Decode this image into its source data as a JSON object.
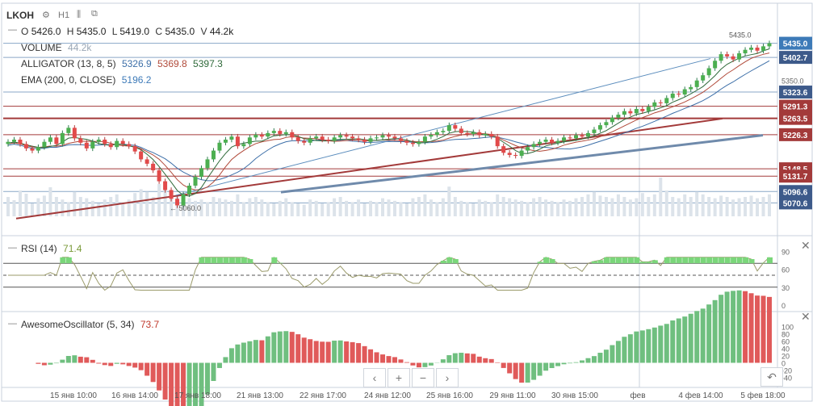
{
  "header": {
    "symbol": "LKOH",
    "timeframe": "H1",
    "ohlc": {
      "o_label": "O",
      "o": "5426.0",
      "h_label": "H",
      "h": "5435.0",
      "l_label": "L",
      "l": "5419.0",
      "c_label": "C",
      "c": "5435.0",
      "v_label": "V",
      "v": "44.2k"
    }
  },
  "legend": {
    "volume_label": "VOLUME",
    "volume_value": "44.2k",
    "alligator_label": "ALLIGATOR (13, 8, 5)",
    "alligator_v1": "5326.9",
    "alligator_v2": "5369.8",
    "alligator_v3": "5397.3",
    "ema_label": "EMA (200, 0, CLOSE)",
    "ema_value": "5196.2"
  },
  "rsi": {
    "label": "RSI (14)",
    "value": "71.4"
  },
  "ao": {
    "label": "AwesomeOscillator (5, 34)",
    "value": "73.7"
  },
  "annotations": {
    "last_price": "5435.0",
    "low_marker": "5060.0",
    "price_5350": "5350.0"
  },
  "controls": {
    "prev": "‹",
    "plus": "+",
    "minus": "−",
    "next": "›",
    "reset": "↶"
  },
  "colors": {
    "up": "#26a69a",
    "down": "#ef5350",
    "accent_blue": "#3d7ab8",
    "level_line": "#a33a3a",
    "ema": "#5a7fa8"
  },
  "chart_data": {
    "type": "candlestick",
    "price_axis": {
      "ticks": [
        "5350.0",
        "5096.6",
        "5070.6"
      ],
      "ylim": [
        5040,
        5460
      ]
    },
    "price_labels": [
      {
        "text": "5435.0",
        "value": 5435.0,
        "color": "#3d7ab8"
      },
      {
        "text": "5402.7",
        "value": 5402.7,
        "color": "#3d5a8a"
      },
      {
        "text": "5323.6",
        "value": 5323.6,
        "color": "#3d5a8a"
      },
      {
        "text": "5291.3",
        "value": 5291.3,
        "color": "#a33a3a"
      },
      {
        "text": "5263.5",
        "value": 5263.5,
        "color": "#a33a3a"
      },
      {
        "text": "5226.3",
        "value": 5226.3,
        "color": "#a33a3a"
      },
      {
        "text": "5148.5",
        "value": 5148.5,
        "color": "#a33a3a"
      },
      {
        "text": "5131.7",
        "value": 5131.7,
        "color": "#a33a3a"
      },
      {
        "text": "5096.6",
        "value": 5096.6,
        "color": "#3d5a8a"
      },
      {
        "text": "5070.6",
        "value": 5070.6,
        "color": "#3d5a8a"
      }
    ],
    "x_labels": [
      "15 янв 10:00",
      "16 янв 14:00",
      "17 янв 18:00",
      "21 янв 13:00",
      "22 янв 17:00",
      "24 янв 12:00",
      "25 янв 16:00",
      "29 янв 11:00",
      "30 янв 15:00",
      "фев",
      "4 фев 14:00",
      "5 фев 18:00"
    ],
    "close": [
      5210,
      5215,
      5205,
      5195,
      5190,
      5198,
      5210,
      5220,
      5205,
      5230,
      5242,
      5218,
      5208,
      5195,
      5210,
      5215,
      5205,
      5198,
      5212,
      5205,
      5200,
      5188,
      5170,
      5160,
      5145,
      5120,
      5100,
      5080,
      5065,
      5090,
      5110,
      5130,
      5150,
      5170,
      5190,
      5208,
      5215,
      5222,
      5200,
      5205,
      5220,
      5226,
      5222,
      5230,
      5235,
      5228,
      5232,
      5220,
      5212,
      5208,
      5218,
      5222,
      5215,
      5212,
      5220,
      5225,
      5222,
      5218,
      5215,
      5210,
      5218,
      5220,
      5225,
      5222,
      5218,
      5212,
      5208,
      5205,
      5210,
      5222,
      5226,
      5232,
      5235,
      5248,
      5240,
      5230,
      5228,
      5232,
      5225,
      5228,
      5222,
      5200,
      5185,
      5180,
      5178,
      5190,
      5198,
      5205,
      5210,
      5215,
      5208,
      5212,
      5220,
      5218,
      5225,
      5222,
      5230,
      5238,
      5248,
      5255,
      5265,
      5272,
      5280,
      5275,
      5285,
      5280,
      5290,
      5300,
      5298,
      5310,
      5320,
      5318,
      5330,
      5335,
      5350,
      5362,
      5378,
      5395,
      5410,
      5405,
      5398,
      5412,
      5420,
      5425,
      5418,
      5428,
      5435
    ],
    "volume": [
      30,
      25,
      40,
      35,
      20,
      28,
      32,
      45,
      30,
      26,
      22,
      38,
      30,
      28,
      24,
      20,
      26,
      30,
      34,
      22,
      26,
      36,
      42,
      38,
      30,
      50,
      46,
      40,
      34,
      30,
      28,
      24,
      26,
      22,
      30,
      28,
      26,
      24,
      34,
      22,
      28,
      30,
      26,
      22,
      20,
      24,
      28,
      22,
      20,
      18,
      26,
      24,
      20,
      22,
      28,
      30,
      24,
      22,
      26,
      20,
      24,
      22,
      28,
      26,
      24,
      22,
      20,
      28,
      30,
      34,
      26,
      22,
      28,
      46,
      30,
      24,
      22,
      20,
      26,
      24,
      22,
      34,
      30,
      28,
      26,
      24,
      22,
      28,
      30,
      26,
      24,
      22,
      26,
      24,
      28,
      30,
      34,
      38,
      32,
      30,
      28,
      34,
      30,
      26,
      28,
      36,
      30,
      34,
      60,
      40,
      30,
      28,
      34,
      30,
      38,
      34,
      30,
      28,
      32,
      30,
      26,
      28,
      30,
      32,
      28,
      30,
      34
    ],
    "rsi_levels": [
      70,
      50,
      30
    ],
    "rsi_ticks": [
      "90",
      "60",
      "30",
      "0"
    ],
    "ao_ticks": [
      "100",
      "80",
      "60",
      "40",
      "20",
      "0",
      "-20",
      "-40"
    ]
  }
}
